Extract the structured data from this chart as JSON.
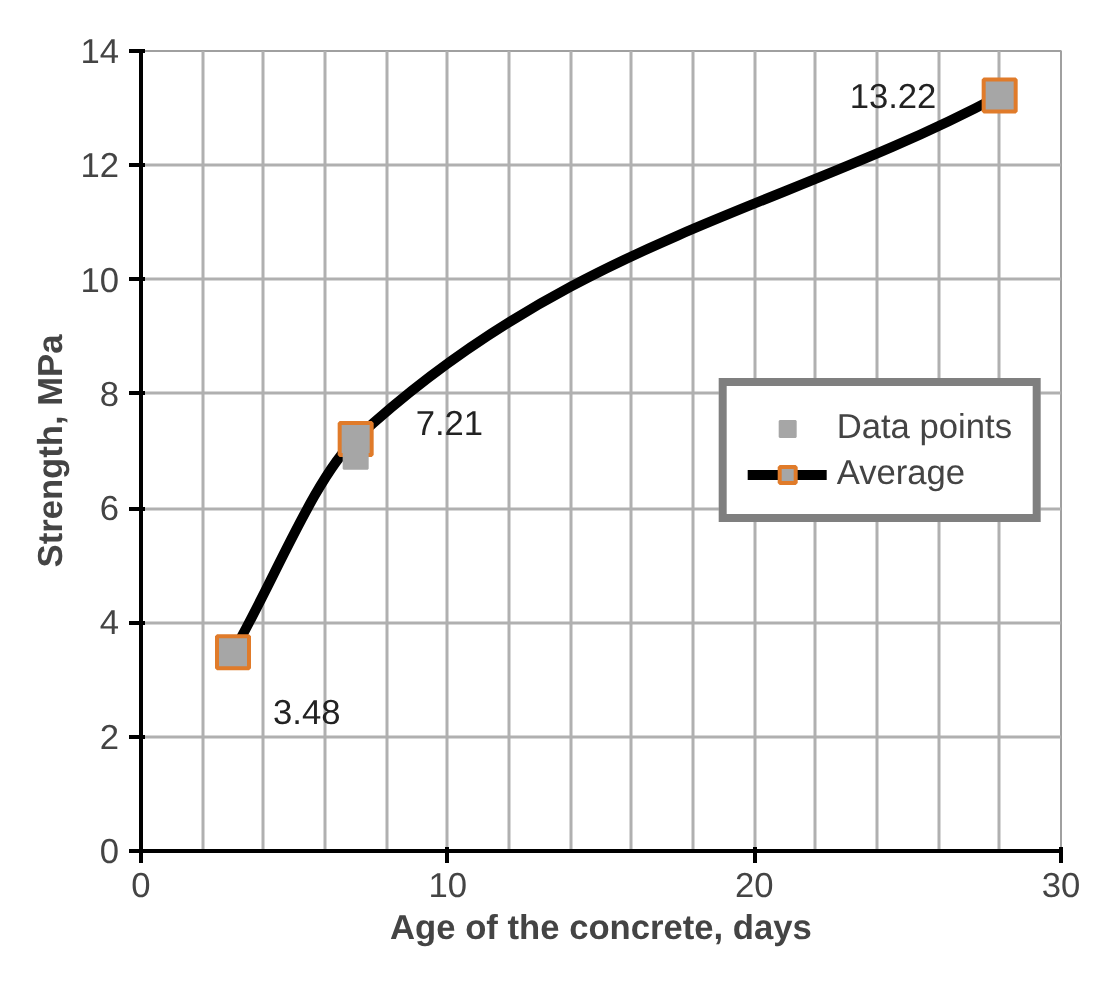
{
  "chart_data": {
    "type": "scatter",
    "xlabel": "Age of the concrete, days",
    "ylabel": "Strength, MPa",
    "xlim": [
      0,
      30
    ],
    "ylim": [
      0,
      14
    ],
    "xticks": [
      0,
      10,
      20,
      30
    ],
    "yticks": [
      0,
      2,
      4,
      6,
      8,
      10,
      12,
      14
    ],
    "grid": true,
    "legend": "right",
    "series": [
      {
        "name": "Data points",
        "marker": "square",
        "color": "#a6a6a6",
        "x": [
          7
        ],
        "values": [
          6.9
        ]
      },
      {
        "name": "Average",
        "type": "line",
        "marker": "square",
        "color": "#000000",
        "x": [
          3,
          7,
          28
        ],
        "values": [
          3.48,
          7.21,
          13.22
        ],
        "value_labels": [
          "3.48",
          "7.21",
          "13.22"
        ]
      }
    ]
  }
}
